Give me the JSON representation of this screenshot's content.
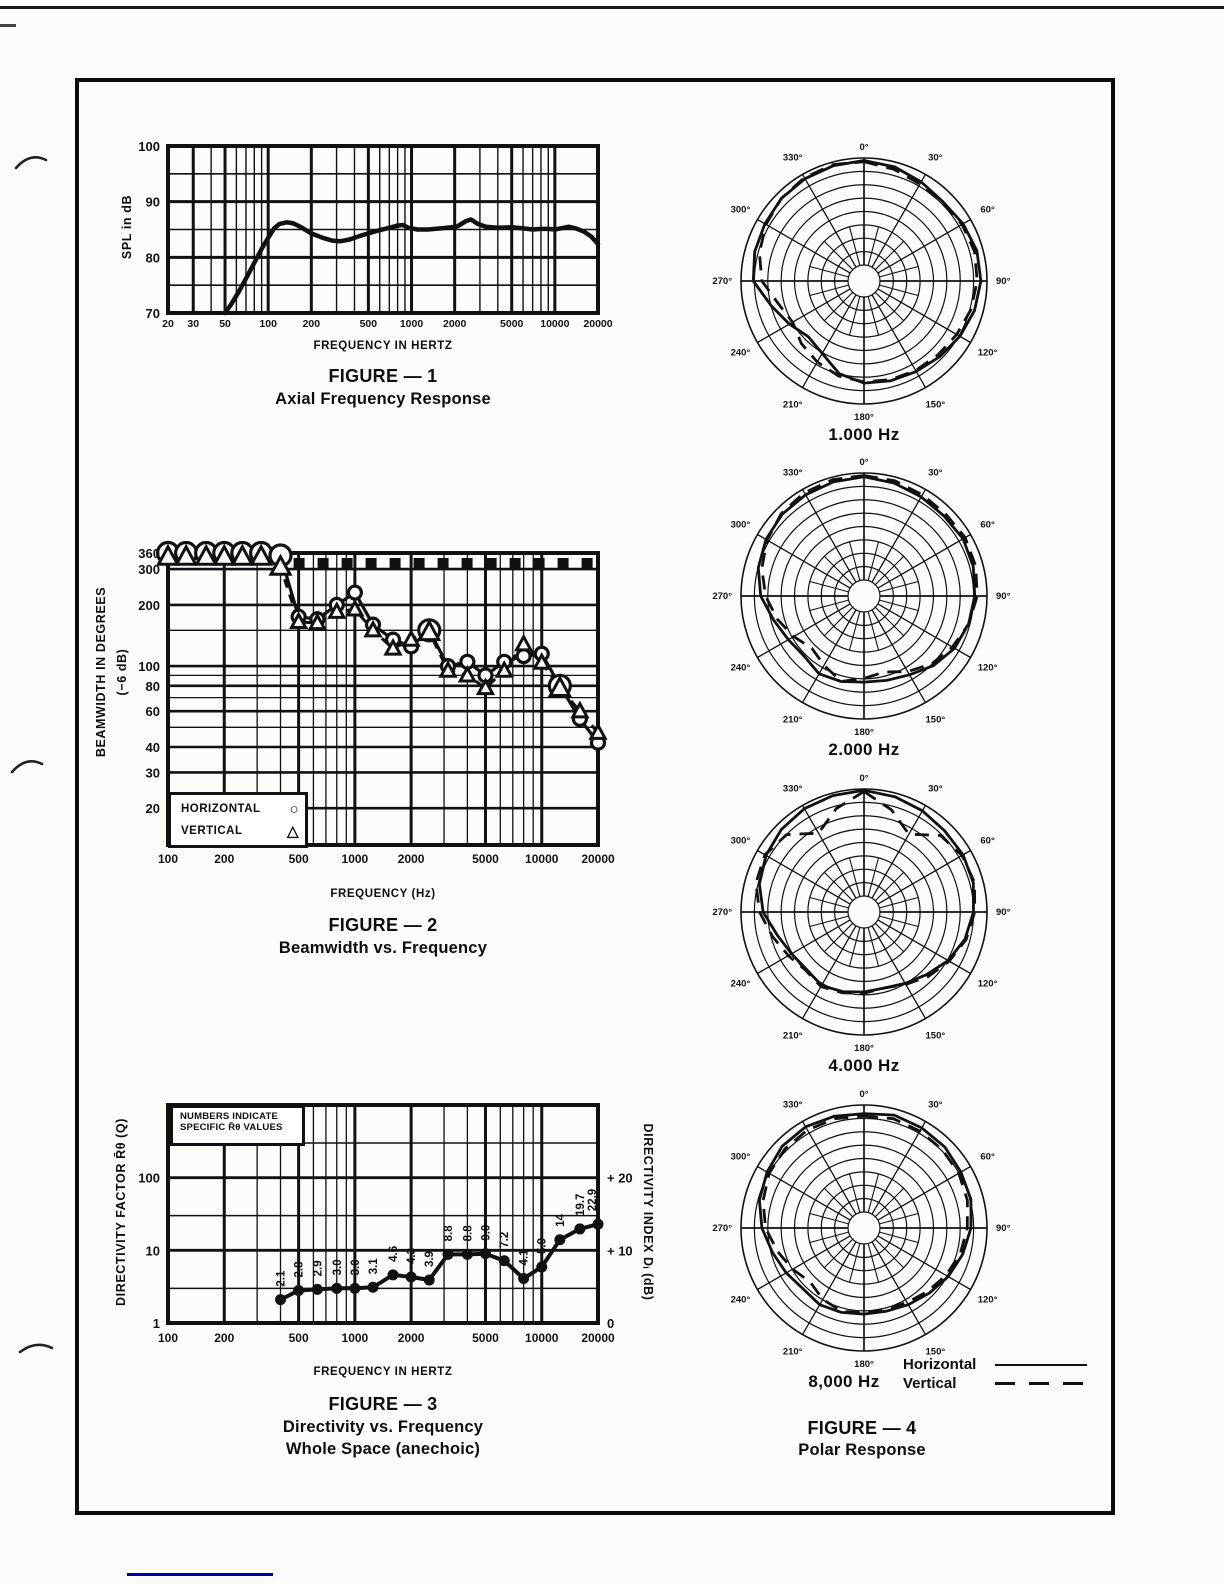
{
  "page": {
    "description": "Loudspeaker measurement figures page"
  },
  "figures": {
    "fig1": {
      "caption_line1": "FIGURE — 1",
      "caption_line2": "Axial Frequency Response",
      "xlabel": "FREQUENCY IN HERTZ",
      "ylabel": "SPL in dB"
    },
    "fig2": {
      "caption_line1": "FIGURE — 2",
      "caption_line2": "Beamwidth vs. Frequency",
      "xlabel": "FREQUENCY (Hz)",
      "ylabel_line1": "BEAMWIDTH IN DEGREES",
      "ylabel_line2": "(−6 dB)",
      "legend": {
        "horizontal_label": "HORIZONTAL",
        "horizontal_symbol": "○",
        "vertical_label": "VERTICAL",
        "vertical_symbol": "△"
      }
    },
    "fig3": {
      "caption_line1": "FIGURE — 3",
      "caption_line2": "Directivity vs. Frequency",
      "caption_line3": "Whole Space (anechoic)",
      "xlabel": "FREQUENCY IN HERTZ",
      "ylabel_left": "DIRECTIVITY FACTOR R̄θ (Q)",
      "ylabel_right": "DIRECTIVITY INDEX Dᵢ (dB)",
      "note_line1": "NUMBERS INDICATE",
      "note_line2": "SPECIFIC R̄θ VALUES"
    },
    "fig4": {
      "caption_line1": "FIGURE — 4",
      "caption_line2": "Polar Response",
      "legend": {
        "horizontal_label": "Horizontal",
        "vertical_label": "Vertical"
      }
    }
  },
  "chart_data": [
    {
      "id": "fig1",
      "type": "line",
      "title": "Axial Frequency Response",
      "xlabel": "FREQUENCY IN HERTZ",
      "ylabel": "SPL in dB",
      "x_scale": "log",
      "x_range": [
        20,
        20000
      ],
      "x_tick_labels": [
        "20",
        "30",
        "50",
        "100",
        "200",
        "500",
        "1000",
        "2000",
        "5000",
        "10000",
        "20000"
      ],
      "ylim": [
        70,
        100
      ],
      "y_tick_labels": [
        "70",
        "80",
        "90",
        "100"
      ],
      "y_grid_step": 5,
      "grid": true,
      "series": [
        {
          "name": "on-axis SPL (dB)",
          "points": [
            [
              50,
              70
            ],
            [
              55,
              71.5
            ],
            [
              63,
              74
            ],
            [
              71,
              76.5
            ],
            [
              80,
              79
            ],
            [
              90,
              81.5
            ],
            [
              100,
              83.5
            ],
            [
              110,
              85.2
            ],
            [
              120,
              86
            ],
            [
              135,
              86.3
            ],
            [
              150,
              86.1
            ],
            [
              170,
              85.4
            ],
            [
              200,
              84.3
            ],
            [
              240,
              83.5
            ],
            [
              280,
              83
            ],
            [
              320,
              82.9
            ],
            [
              370,
              83.2
            ],
            [
              430,
              83.8
            ],
            [
              500,
              84.3
            ],
            [
              600,
              84.9
            ],
            [
              700,
              85.3
            ],
            [
              800,
              85.7
            ],
            [
              870,
              85.8
            ],
            [
              950,
              85.3
            ],
            [
              1100,
              85
            ],
            [
              1300,
              85
            ],
            [
              1600,
              85.2
            ],
            [
              1900,
              85.4
            ],
            [
              2100,
              85.6
            ],
            [
              2400,
              86.5
            ],
            [
              2600,
              86.8
            ],
            [
              2900,
              86
            ],
            [
              3300,
              85.5
            ],
            [
              4000,
              85.3
            ],
            [
              5000,
              85.4
            ],
            [
              6000,
              85.2
            ],
            [
              7000,
              85
            ],
            [
              8000,
              85.1
            ],
            [
              9000,
              85.1
            ],
            [
              10000,
              85
            ],
            [
              11500,
              85.3
            ],
            [
              12500,
              85.5
            ],
            [
              14000,
              85.2
            ],
            [
              16000,
              84.6
            ],
            [
              18000,
              83.7
            ],
            [
              20000,
              82.4
            ]
          ]
        }
      ]
    },
    {
      "id": "fig2",
      "type": "scatter",
      "title": "Beamwidth vs. Frequency",
      "xlabel": "FREQUENCY (Hz)",
      "ylabel": "BEAMWIDTH IN DEGREES (−6 dB)",
      "x_scale": "log",
      "x_range": [
        100,
        20000
      ],
      "x_tick_labels": [
        "100",
        "200",
        "500",
        "1000",
        "2000",
        "5000",
        "10000",
        "20000"
      ],
      "y_scale": "log",
      "y_range": [
        20,
        360
      ],
      "y_gridlines": [
        360,
        300,
        200,
        150,
        100,
        90,
        80,
        70,
        60,
        50,
        40,
        30,
        20
      ],
      "y_tick_labels": [
        "360",
        "300",
        "200",
        "100",
        "80",
        "60",
        "40",
        "30",
        "20"
      ],
      "y_tick_values": [
        360,
        300,
        200,
        100,
        80,
        60,
        40,
        30,
        20
      ],
      "frequencies": [
        100,
        125,
        160,
        200,
        250,
        315,
        400,
        500,
        630,
        800,
        1000,
        1250,
        1600,
        2000,
        2500,
        3150,
        4000,
        5000,
        6300,
        8000,
        10000,
        12500,
        16000,
        20000
      ],
      "series": [
        {
          "name": "HORIZONTAL",
          "marker": "circle",
          "values": [
            360,
            360,
            360,
            360,
            360,
            360,
            350,
            175,
            170,
            200,
            230,
            160,
            135,
            125,
            150,
            100,
            105,
            90,
            105,
            112,
            115,
            80,
            55,
            42
          ]
        },
        {
          "name": "VERTICAL",
          "marker": "triangle",
          "values": [
            345,
            345,
            345,
            345,
            345,
            345,
            308,
            165,
            163,
            185,
            190,
            150,
            122,
            135,
            147,
            95,
            90,
            78,
            95,
            128,
            104,
            78,
            60,
            47
          ]
        }
      ],
      "big_marker_freqs": [
        100,
        125,
        160,
        200,
        250,
        315,
        400,
        2500,
        12500
      ]
    },
    {
      "id": "fig3",
      "type": "line",
      "title": "Directivity vs. Frequency — Whole Space (anechoic)",
      "xlabel": "FREQUENCY IN HERTZ",
      "ylabel_left": "DIRECTIVITY FACTOR R̄θ (Q)",
      "ylabel_right": "DIRECTIVITY INDEX Dᵢ (dB)",
      "x_scale": "log",
      "x_range": [
        100,
        20000
      ],
      "x_tick_labels": [
        "100",
        "200",
        "500",
        "1000",
        "2000",
        "5000",
        "10000",
        "20000"
      ],
      "y_scale": "log",
      "y_range": [
        1,
        1000
      ],
      "y_gridlines": [
        300,
        100,
        30,
        10,
        3
      ],
      "y_tick_labels_left": [
        "100",
        "10",
        "1"
      ],
      "y_tick_values_left": [
        100,
        10,
        1
      ],
      "y_tick_labels_right": [
        "+ 20",
        "+ 10",
        "0"
      ],
      "y_tick_values_right": [
        100,
        10,
        1
      ],
      "frequencies": [
        400,
        500,
        630,
        800,
        1000,
        1250,
        1600,
        2000,
        2500,
        3150,
        4000,
        5000,
        6300,
        8000,
        10000,
        12500,
        16000,
        20000
      ],
      "values": [
        2.1,
        2.8,
        2.9,
        3.0,
        3.0,
        3.1,
        4.6,
        4.3,
        3.9,
        8.8,
        8.8,
        9.0,
        7.2,
        4.1,
        5.9,
        14,
        19.7,
        22.9
      ],
      "point_labels": [
        "2.1",
        "2.8",
        "2.9",
        "3.0",
        "3.0",
        "3.1",
        "4.6",
        "4.3",
        "3.9",
        "8.8",
        "8.8",
        "9.0",
        "7.2",
        "4.1",
        "5.9",
        "14",
        "19.7",
        "22.9"
      ]
    },
    {
      "id": "fig4",
      "type": "polar",
      "title": "Polar Response",
      "rings": 9,
      "angle_step_deg": 15,
      "angle_labels": [
        "0°",
        "30°",
        "60°",
        "90°",
        "120°",
        "150°",
        "180°",
        "210°",
        "240°",
        "270°",
        "300°",
        "330°"
      ],
      "legend": {
        "horizontal": "Horizontal",
        "vertical": "Vertical"
      },
      "plots": [
        {
          "title": "1.000 Hz",
          "horizontal": [
            0.98,
            0.96,
            0.93,
            0.91,
            0.93,
            0.95,
            0.95,
            0.93,
            0.9,
            0.87,
            0.85,
            0.84,
            0.83,
            0.78,
            0.68,
            0.64,
            0.7,
            0.78,
            0.9,
            0.92,
            0.93,
            0.95,
            0.96,
            0.97
          ],
          "vertical": [
            0.97,
            0.94,
            0.91,
            0.9,
            0.92,
            0.93,
            0.92,
            0.9,
            0.87,
            0.85,
            0.84,
            0.83,
            0.82,
            0.8,
            0.76,
            0.72,
            0.67,
            0.72,
            0.83,
            0.88,
            0.92,
            0.95,
            0.97,
            0.98
          ]
        },
        {
          "title": "2.000 Hz",
          "horizontal": [
            0.97,
            0.95,
            0.93,
            0.92,
            0.93,
            0.92,
            0.9,
            0.88,
            0.85,
            0.8,
            0.74,
            0.71,
            0.7,
            0.72,
            0.73,
            0.69,
            0.71,
            0.76,
            0.84,
            0.89,
            0.92,
            0.94,
            0.95,
            0.96
          ],
          "vertical": [
            0.98,
            0.97,
            0.95,
            0.94,
            0.95,
            0.94,
            0.92,
            0.88,
            0.83,
            0.78,
            0.71,
            0.64,
            0.67,
            0.72,
            0.65,
            0.6,
            0.66,
            0.73,
            0.8,
            0.86,
            0.91,
            0.95,
            0.97,
            0.98
          ]
        },
        {
          "title": "4.000 Hz",
          "horizontal": [
            0.99,
            0.97,
            0.95,
            0.93,
            0.93,
            0.92,
            0.89,
            0.85,
            0.79,
            0.72,
            0.67,
            0.64,
            0.65,
            0.67,
            0.69,
            0.66,
            0.68,
            0.73,
            0.82,
            0.88,
            0.92,
            0.95,
            0.97,
            0.98
          ],
          "vertical": [
            0.98,
            0.86,
            0.73,
            0.88,
            0.92,
            0.93,
            0.9,
            0.86,
            0.8,
            0.74,
            0.68,
            0.64,
            0.66,
            0.68,
            0.7,
            0.67,
            0.71,
            0.77,
            0.85,
            0.91,
            0.93,
            0.89,
            0.74,
            0.87
          ]
        },
        {
          "title": "8,000 Hz",
          "horizontal": [
            0.93,
            0.95,
            0.94,
            0.93,
            0.91,
            0.9,
            0.87,
            0.83,
            0.79,
            0.75,
            0.72,
            0.7,
            0.7,
            0.71,
            0.72,
            0.7,
            0.73,
            0.77,
            0.83,
            0.88,
            0.91,
            0.94,
            0.95,
            0.94
          ],
          "vertical": [
            0.91,
            0.92,
            0.91,
            0.9,
            0.89,
            0.87,
            0.84,
            0.81,
            0.77,
            0.73,
            0.7,
            0.68,
            0.69,
            0.7,
            0.67,
            0.62,
            0.67,
            0.73,
            0.8,
            0.85,
            0.89,
            0.91,
            0.92,
            0.92
          ]
        }
      ]
    }
  ]
}
